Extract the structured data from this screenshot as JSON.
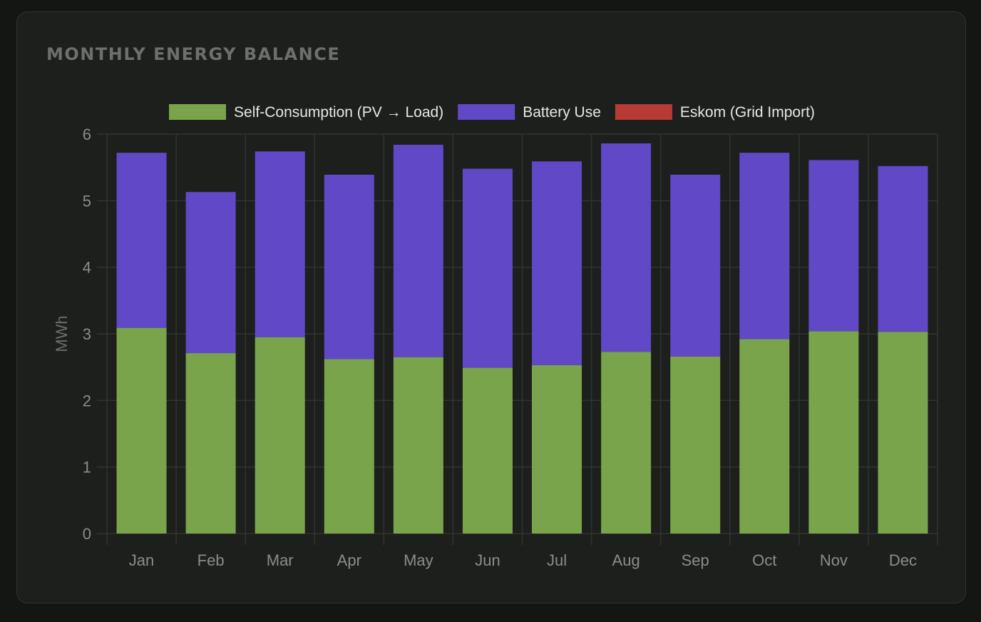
{
  "card": {
    "title": "MONTHLY ENERGY BALANCE"
  },
  "colors": {
    "self_consumption": "#79a44b",
    "battery": "#6148c7",
    "grid": "#b83a35",
    "grid_lines": "#30332f"
  },
  "chart_data": {
    "type": "bar",
    "stacked": true,
    "categories": [
      "Jan",
      "Feb",
      "Mar",
      "Apr",
      "May",
      "Jun",
      "Jul",
      "Aug",
      "Sep",
      "Oct",
      "Nov",
      "Dec"
    ],
    "series": [
      {
        "name": "Self-Consumption (PV → Load)",
        "color": "#79a44b",
        "values": [
          3.09,
          2.71,
          2.95,
          2.62,
          2.65,
          2.49,
          2.53,
          2.73,
          2.66,
          2.92,
          3.04,
          3.03
        ]
      },
      {
        "name": "Battery Use",
        "color": "#6148c7",
        "values": [
          2.63,
          2.42,
          2.79,
          2.77,
          3.19,
          2.99,
          3.06,
          3.13,
          2.73,
          2.8,
          2.57,
          2.49
        ]
      },
      {
        "name": "Eskom (Grid Import)",
        "color": "#b83a35",
        "values": [
          0,
          0,
          0,
          0,
          0,
          0,
          0,
          0,
          0,
          0,
          0,
          0
        ]
      }
    ],
    "ylabel": "MWh",
    "xlabel": "",
    "ylim": [
      0,
      6
    ],
    "yticks": [
      "0",
      "1",
      "2",
      "3",
      "4",
      "5",
      "6"
    ],
    "grid": true,
    "legend_position": "top-center"
  }
}
